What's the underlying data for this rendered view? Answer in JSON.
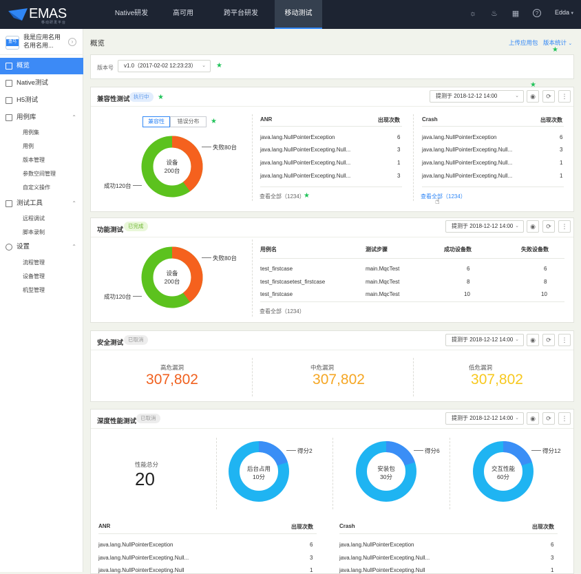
{
  "brand": {
    "name": "EMAS",
    "subtitle": "移动研发平台"
  },
  "nav": [
    "Native研发",
    "高可用",
    "跨平台研发",
    "移动测试"
  ],
  "user": {
    "name": "Edda"
  },
  "app": {
    "name": "我是应用名用名用名用...",
    "icon_text": "盒马"
  },
  "sidebar": {
    "overview": "概览",
    "native": "Native测试",
    "h5": "H5测试",
    "caselib": {
      "label": "用例库",
      "items": [
        "用例集",
        "用例",
        "版本管理",
        "参数空间管理",
        "自定义操作"
      ]
    },
    "tools": {
      "label": "测试工具",
      "items": [
        "远程调试",
        "脚本录制"
      ]
    },
    "settings": {
      "label": "设置",
      "items": [
        "流程管理",
        "设备管理",
        "机型管理"
      ]
    }
  },
  "page": {
    "title": "概览",
    "upload": "上传应用包",
    "stats": "版本统计"
  },
  "version": {
    "label": "版本号",
    "value": "v1.0（2017-02-02 12:23:23）"
  },
  "compat": {
    "title": "兼容性测试",
    "badge": "执行中",
    "submitted": "提测于 2018-12-12 14:00",
    "toggle": [
      "兼容性",
      "错误分布"
    ],
    "donut": {
      "center": "设备",
      "total": "200台",
      "fail": "失败80台",
      "success": "成功120台",
      "fail_fraction": 0.4
    },
    "anr": {
      "header": [
        "ANR",
        "出现次数"
      ],
      "rows": [
        [
          "java.lang.NullPointerException",
          "6"
        ],
        [
          "java.lang.NullPointerExcepting.Null...",
          "3"
        ],
        [
          "java.lang.NullPointerExcepting.Null...",
          "1"
        ],
        [
          "java.lang.NullPointerExcepting.Null...",
          "3"
        ]
      ],
      "view_all": "查看全部（1234）"
    },
    "crash": {
      "header": [
        "Crash",
        "出现次数"
      ],
      "rows": [
        [
          "java.lang.NullPointerException",
          "6"
        ],
        [
          "java.lang.NullPointerExcepting.Null...",
          "3"
        ],
        [
          "java.lang.NullPointerExcepting.Null...",
          "1"
        ],
        [
          "java.lang.NullPointerExcepting.Null...",
          "1"
        ]
      ],
      "view_all": "查看全部（1234）"
    }
  },
  "func": {
    "title": "功能测试",
    "badge": "已完成",
    "submitted": "提测于 2018-12-12 14:00",
    "donut": {
      "center": "设备",
      "total": "200台",
      "fail": "失败80台",
      "success": "成功120台",
      "fail_fraction": 0.4
    },
    "table": {
      "header": [
        "用例名",
        "测试步骤",
        "成功设备数",
        "失败设备数"
      ],
      "rows": [
        [
          "test_firstcase",
          "main.MqcTest",
          "6",
          "6"
        ],
        [
          "test_firstcasetest_firstcase",
          "main.MqcTest",
          "8",
          "8"
        ],
        [
          "test_firstcase",
          "main.MqcTest",
          "10",
          "10"
        ]
      ]
    },
    "view_all": "查看全部（1234）"
  },
  "security": {
    "title": "安全测试",
    "badge": "已取消",
    "submitted": "提测于 2018-12-12 14:00",
    "high": {
      "label": "高危漏洞",
      "value": "307,802",
      "color": "#f0601e"
    },
    "mid": {
      "label": "中危漏洞",
      "value": "307,802",
      "color": "#f5a623"
    },
    "low": {
      "label": "低危漏洞",
      "value": "307,802",
      "color": "#f7c81e"
    }
  },
  "perf": {
    "title": "深度性能测试",
    "badge": "已取消",
    "submitted": "提测于 2018-12-12 14:00",
    "total_label": "性能总分",
    "total_value": "20",
    "donuts": [
      {
        "name": "后台占用",
        "value": "10分",
        "score": "得分2",
        "fraction": 0.2
      },
      {
        "name": "安装包",
        "value": "30分",
        "score": "得分6",
        "fraction": 0.2
      },
      {
        "name": "交互性能",
        "value": "60分",
        "score": "得分12",
        "fraction": 0.2
      }
    ],
    "anr": {
      "header": [
        "ANR",
        "出现次数"
      ],
      "rows": [
        [
          "java.lang.NullPointerException",
          "6"
        ],
        [
          "java.lang.NullPointerExcepting.Null...",
          "3"
        ],
        [
          "java.lang.NullPointerExcepting.Null",
          "1"
        ]
      ]
    },
    "crash": {
      "header": [
        "Crash",
        "出现次数"
      ],
      "rows": [
        [
          "java.lang.NullPointerException",
          "6"
        ],
        [
          "java.lang.NullPointerExcepting.Null...",
          "3"
        ],
        [
          "java.lang.NullPointerExcepting.Null",
          "1"
        ]
      ]
    }
  },
  "colors": {
    "accent": "#2f86f6",
    "success": "#5cc21e",
    "fail": "#f5611e",
    "perf_main": "#1fb4f2",
    "perf_part": "#3a8ef6"
  }
}
